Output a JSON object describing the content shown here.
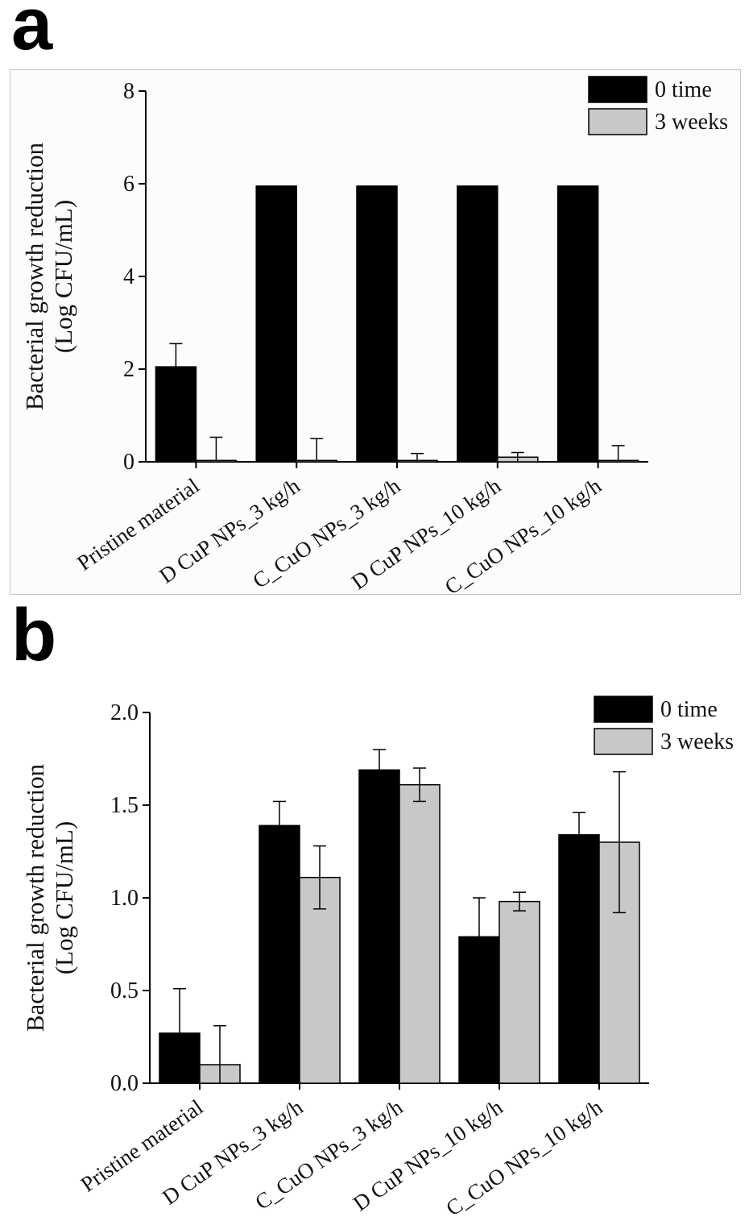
{
  "figure": {
    "panel_a_label": "a",
    "panel_b_label": "b"
  },
  "colors": {
    "series_0_time": "#000000",
    "series_3_weeks": "#c8c8c8",
    "axis": "#000000",
    "panel_a_border": "#c4c4c4",
    "panel_a_background": "#fcfcfc"
  },
  "chart_data": [
    {
      "type": "bar",
      "panel": "a",
      "title": "",
      "ylabel_lines": [
        "Bacterial growth reduction",
        "(Log CFU/mL)"
      ],
      "categories": [
        "Pristine material",
        "D CuP NPs_3 kg/h",
        "C_CuO NPs_3 kg/h",
        "D CuP NPs_10 kg/h",
        "C_CuO NPs_10 kg/h"
      ],
      "series": [
        {
          "name": "0 time",
          "values": [
            2.05,
            5.95,
            5.95,
            5.95,
            5.95
          ],
          "errors": [
            0.5,
            0,
            0,
            0,
            0
          ]
        },
        {
          "name": "3 weeks",
          "values": [
            0.03,
            0.03,
            0.03,
            0.1,
            0.03
          ],
          "errors": [
            0.5,
            0.47,
            0.15,
            0.1,
            0.32
          ]
        }
      ],
      "ylim": [
        0,
        8
      ],
      "yticks": [
        0,
        2,
        4,
        6,
        8
      ],
      "ytick_labels": [
        "0",
        "2",
        "4",
        "6",
        "8"
      ],
      "legend": [
        "0 time",
        "3 weeks"
      ],
      "legend_position": "top-right",
      "grid": false
    },
    {
      "type": "bar",
      "panel": "b",
      "title": "",
      "ylabel_lines": [
        "Bacterial growth reduction",
        "(Log CFU/mL)"
      ],
      "categories": [
        "Pristine material",
        "D CuP NPs_3 kg/h",
        "C_CuO NPs_3 kg/h",
        "D CuP NPs_10 kg/h",
        "C_CuO NPs_10 kg/h"
      ],
      "series": [
        {
          "name": "0 time",
          "values": [
            0.27,
            1.39,
            1.69,
            0.79,
            1.34
          ],
          "errors": [
            0.24,
            0.13,
            0.11,
            0.21,
            0.12
          ]
        },
        {
          "name": "3 weeks",
          "values": [
            0.1,
            1.11,
            1.61,
            0.98,
            1.3
          ],
          "errors": [
            0.21,
            0.17,
            0.09,
            0.05,
            0.38
          ]
        }
      ],
      "ylim": [
        0,
        2
      ],
      "yticks": [
        0,
        0.5,
        1,
        1.5,
        2
      ],
      "ytick_labels": [
        "0.0",
        "0.5",
        "1.0",
        "1.5",
        "2.0"
      ],
      "legend": [
        "0 time",
        "3 weeks"
      ],
      "legend_position": "top-right",
      "grid": false
    }
  ]
}
